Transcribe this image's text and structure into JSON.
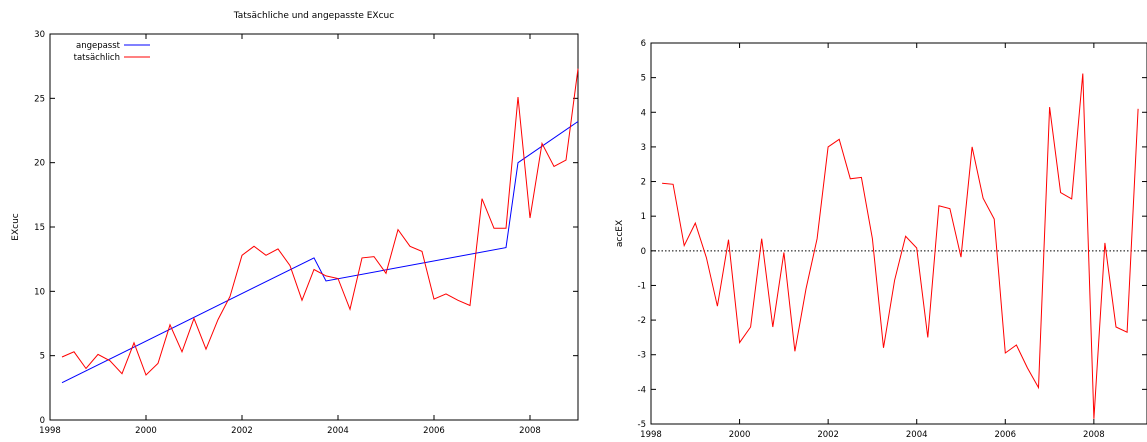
{
  "chart_data": [
    {
      "type": "line",
      "title": "Tatsächliche und angepasste EXcuc",
      "xlabel": "",
      "ylabel": "EXcuc",
      "xlim": [
        1998,
        2009
      ],
      "ylim": [
        0,
        30
      ],
      "x_ticks": [
        1998,
        2000,
        2002,
        2004,
        2006,
        2008
      ],
      "y_ticks": [
        0,
        5,
        10,
        15,
        20,
        25,
        30
      ],
      "legend_position": "top-left",
      "series": [
        {
          "name": "angepasst",
          "color": "#0000ff",
          "points": [
            [
              1998.25,
              2.9
            ],
            [
              2003.5,
              12.6
            ],
            [
              2003.75,
              10.8
            ],
            [
              2007.5,
              13.4
            ],
            [
              2007.75,
              20.0
            ],
            [
              2009.0,
              23.2
            ]
          ]
        },
        {
          "name": "tatsächlich",
          "color": "#ff0000",
          "points": [
            [
              1998.25,
              4.9
            ],
            [
              1998.5,
              5.3
            ],
            [
              1998.75,
              4.0
            ],
            [
              1999.0,
              5.1
            ],
            [
              1999.25,
              4.6
            ],
            [
              1999.5,
              3.6
            ],
            [
              1999.75,
              6.0
            ],
            [
              2000.0,
              3.5
            ],
            [
              2000.25,
              4.4
            ],
            [
              2000.5,
              7.4
            ],
            [
              2000.75,
              5.3
            ],
            [
              2001.0,
              7.9
            ],
            [
              2001.25,
              5.5
            ],
            [
              2001.5,
              7.8
            ],
            [
              2001.75,
              9.6
            ],
            [
              2002.0,
              12.8
            ],
            [
              2002.25,
              13.5
            ],
            [
              2002.5,
              12.8
            ],
            [
              2002.75,
              13.3
            ],
            [
              2003.0,
              12.0
            ],
            [
              2003.25,
              9.3
            ],
            [
              2003.5,
              11.7
            ],
            [
              2003.75,
              11.2
            ],
            [
              2004.0,
              11.0
            ],
            [
              2004.25,
              8.6
            ],
            [
              2004.5,
              12.6
            ],
            [
              2004.75,
              12.7
            ],
            [
              2005.0,
              11.4
            ],
            [
              2005.25,
              14.8
            ],
            [
              2005.5,
              13.5
            ],
            [
              2005.75,
              13.1
            ],
            [
              2006.0,
              9.4
            ],
            [
              2006.25,
              9.8
            ],
            [
              2006.5,
              9.3
            ],
            [
              2006.75,
              8.9
            ],
            [
              2007.0,
              17.2
            ],
            [
              2007.25,
              14.9
            ],
            [
              2007.5,
              14.9
            ],
            [
              2007.75,
              25.1
            ],
            [
              2008.0,
              15.7
            ],
            [
              2008.25,
              21.5
            ],
            [
              2008.5,
              19.7
            ],
            [
              2008.75,
              20.2
            ],
            [
              2009.0,
              27.3
            ]
          ]
        }
      ]
    },
    {
      "type": "line",
      "title": "",
      "xlabel": "",
      "ylabel": "accEX",
      "xlim": [
        1998,
        2009.2
      ],
      "ylim": [
        -5,
        6
      ],
      "x_ticks": [
        1998,
        2000,
        2002,
        2004,
        2006,
        2008
      ],
      "y_ticks": [
        -5,
        -4,
        -3,
        -2,
        -1,
        0,
        1,
        2,
        3,
        4,
        5,
        6
      ],
      "zero_line": "dotted",
      "series": [
        {
          "color": "#ff0000",
          "points": [
            [
              1998.25,
              1.95
            ],
            [
              1998.5,
              1.92
            ],
            [
              1998.75,
              0.15
            ],
            [
              1999.0,
              0.8
            ],
            [
              1999.25,
              -0.2
            ],
            [
              1999.5,
              -1.6
            ],
            [
              1999.75,
              0.32
            ],
            [
              2000.0,
              -2.65
            ],
            [
              2000.25,
              -2.2
            ],
            [
              2000.5,
              0.35
            ],
            [
              2000.75,
              -2.2
            ],
            [
              2001.0,
              -0.05
            ],
            [
              2001.25,
              -2.9
            ],
            [
              2001.5,
              -1.1
            ],
            [
              2001.75,
              0.35
            ],
            [
              2002.0,
              3.0
            ],
            [
              2002.25,
              3.22
            ],
            [
              2002.5,
              2.08
            ],
            [
              2002.75,
              2.12
            ],
            [
              2003.0,
              0.35
            ],
            [
              2003.25,
              -2.8
            ],
            [
              2003.5,
              -0.85
            ],
            [
              2003.75,
              0.42
            ],
            [
              2004.0,
              0.08
            ],
            [
              2004.25,
              -2.5
            ],
            [
              2004.5,
              1.3
            ],
            [
              2004.75,
              1.22
            ],
            [
              2005.0,
              -0.18
            ],
            [
              2005.25,
              3.0
            ],
            [
              2005.5,
              1.52
            ],
            [
              2005.75,
              0.92
            ],
            [
              2006.0,
              -2.95
            ],
            [
              2006.25,
              -2.72
            ],
            [
              2006.5,
              -3.38
            ],
            [
              2006.75,
              -3.95
            ],
            [
              2007.0,
              4.15
            ],
            [
              2007.25,
              1.68
            ],
            [
              2007.5,
              1.5
            ],
            [
              2007.75,
              5.12
            ],
            [
              2008.0,
              -4.85
            ],
            [
              2008.25,
              0.23
            ],
            [
              2008.5,
              -2.2
            ],
            [
              2008.75,
              -2.35
            ],
            [
              2009.0,
              4.1
            ]
          ]
        }
      ]
    }
  ]
}
